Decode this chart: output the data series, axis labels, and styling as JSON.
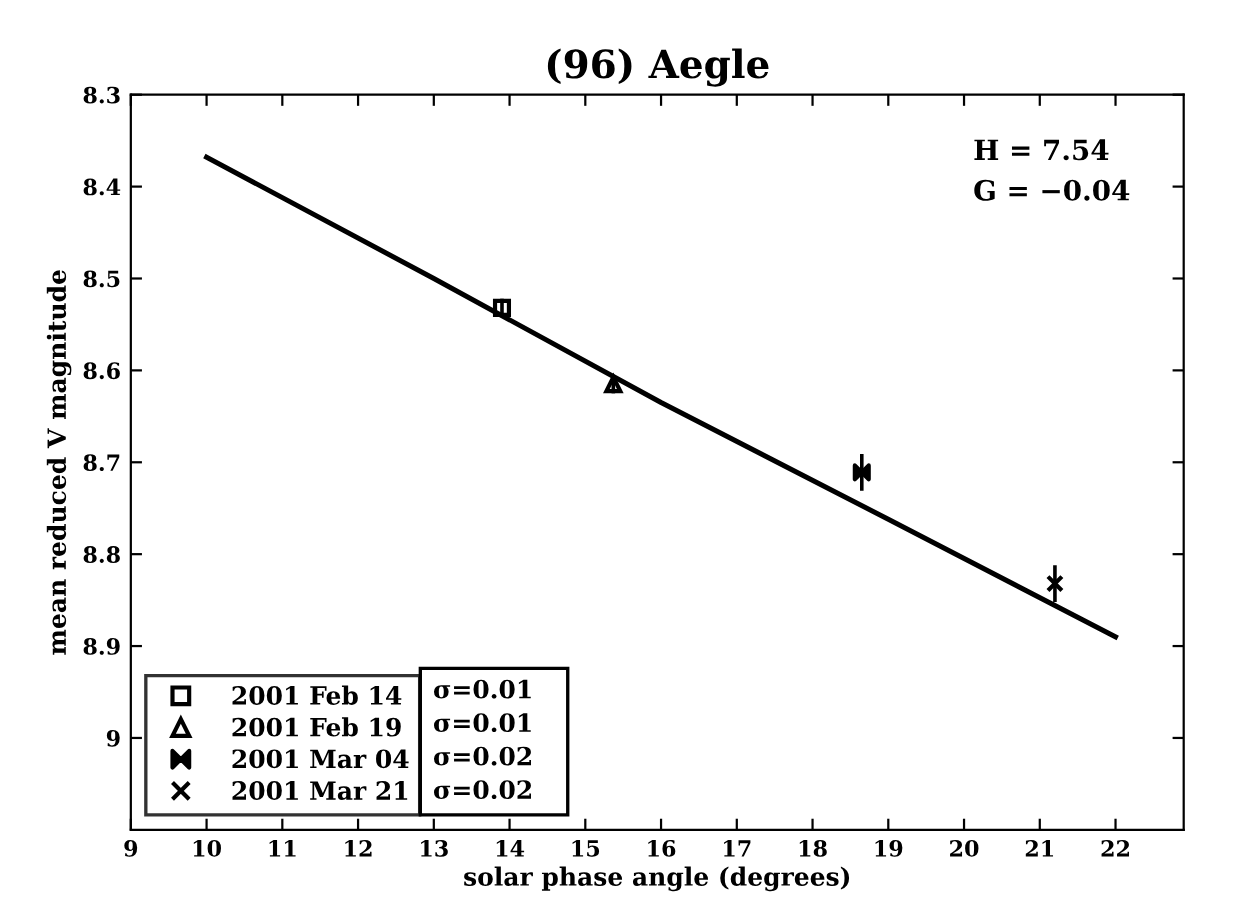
{
  "chart_data": {
    "type": "scatter",
    "title": "(96) Aegle",
    "xlabel": "solar phase angle (degrees)",
    "ylabel": "mean reduced V magnitude",
    "xlim": [
      9,
      22.9
    ],
    "xticks": [
      9,
      10,
      11,
      12,
      13,
      14,
      15,
      16,
      17,
      18,
      19,
      20,
      21,
      22
    ],
    "ylim": [
      9.1,
      8.3
    ],
    "yticks": [
      8.3,
      8.4,
      8.5,
      8.6,
      8.7,
      8.8,
      8.9,
      9
    ],
    "series": [
      {
        "name": "2001 Feb 14",
        "marker": "square",
        "color": "#000000",
        "x": [
          13.9
        ],
        "values": [
          8.532
        ],
        "errors": [
          0.01
        ]
      },
      {
        "name": "2001 Feb 19",
        "marker": "triangle",
        "color": "#000000",
        "x": [
          15.37
        ],
        "values": [
          8.615
        ],
        "errors": [
          0.01
        ]
      },
      {
        "name": "2001 Mar 04",
        "color": "#000000",
        "x": [
          18.65
        ],
        "values": [
          8.711
        ],
        "errors": [
          0.02
        ]
      },
      {
        "name": "2001 Mar 21",
        "marker": "cross",
        "color": "#000000",
        "x": [
          21.2
        ],
        "values": [
          8.832
        ],
        "errors": [
          0.02
        ]
      },
      {
        "type": "line",
        "color": "#000000",
        "line_style": "solid",
        "x": [
          10,
          13,
          16,
          19,
          22
        ],
        "values": [
          8.368,
          8.5,
          8.635,
          8.762,
          8.89
        ]
      }
    ],
    "annotations": [
      "H = 7.54",
      "G = −0.04",
      "σ=0.01",
      "σ=0.01",
      "σ=0.02",
      "σ=0.02"
    ],
    "legend": "bottom left",
    "grid": false
  }
}
